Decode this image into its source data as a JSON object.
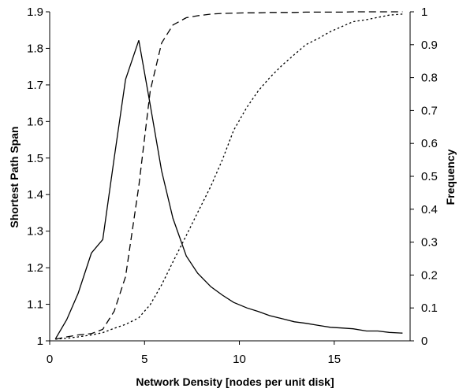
{
  "chart_data": {
    "type": "line",
    "xlabel": "Network Density [nodes per unit disk]",
    "ylabel_left": "Shortest Path Span",
    "ylabel_right": "Frequency",
    "xlim": [
      0,
      19
    ],
    "ylim_left": [
      1,
      1.9
    ],
    "ylim_right": [
      0,
      1
    ],
    "x_ticks": [
      0,
      5,
      10,
      15
    ],
    "y_ticks_left": [
      1,
      1.1,
      1.2,
      1.3,
      1.4,
      1.5,
      1.6,
      1.7,
      1.8,
      1.9
    ],
    "y_ticks_right": [
      0,
      0.1,
      0.2,
      0.3,
      0.4,
      0.5,
      0.6,
      0.7,
      0.8,
      0.9,
      1
    ],
    "y_tick_labels_right": [
      "0",
      "0.1",
      "0.2",
      "0.3",
      "0.4",
      "0.5",
      "0.6",
      "0.7",
      "0.8",
      "0.9",
      "1"
    ],
    "grid": false,
    "legend": "none",
    "series": [
      {
        "axis": "left",
        "style": "solid",
        "x": [
          0.3,
          0.9,
          1.5,
          2.2,
          2.8,
          3.4,
          4.0,
          4.7,
          5.3,
          5.9,
          6.5,
          7.2,
          7.8,
          8.5,
          9.1,
          9.7,
          10.4,
          11.0,
          11.6,
          12.3,
          12.9,
          13.5,
          14.2,
          14.8,
          15.4,
          16.0,
          16.7,
          17.3,
          17.9,
          18.6
        ],
        "y": [
          1.005,
          1.058,
          1.13,
          1.24,
          1.277,
          1.5,
          1.715,
          1.822,
          1.645,
          1.465,
          1.335,
          1.232,
          1.185,
          1.148,
          1.125,
          1.105,
          1.09,
          1.08,
          1.069,
          1.06,
          1.052,
          1.048,
          1.042,
          1.037,
          1.035,
          1.033,
          1.027,
          1.027,
          1.023,
          1.021
        ]
      },
      {
        "axis": "right",
        "style": "dashed",
        "x": [
          0.3,
          0.9,
          1.5,
          2.2,
          2.8,
          3.4,
          4.0,
          4.7,
          5.3,
          5.9,
          6.5,
          7.2,
          7.8,
          8.5,
          9.1,
          9.7,
          10.4,
          11.0,
          11.6,
          12.3,
          12.9,
          13.5,
          14.2,
          14.8,
          15.4,
          16.0,
          16.7,
          17.3,
          17.9,
          18.6
        ],
        "y": [
          0.005,
          0.012,
          0.018,
          0.022,
          0.035,
          0.09,
          0.195,
          0.47,
          0.76,
          0.905,
          0.96,
          0.982,
          0.988,
          0.993,
          0.995,
          0.996,
          0.997,
          0.997,
          0.998,
          0.998,
          0.998,
          0.999,
          0.999,
          0.999,
          0.999,
          1.0,
          1.0,
          1.0,
          1.0,
          1.0
        ]
      },
      {
        "axis": "right",
        "style": "dotted",
        "x": [
          0.3,
          0.9,
          1.5,
          2.2,
          2.8,
          3.4,
          4.0,
          4.7,
          5.3,
          5.9,
          6.5,
          7.2,
          7.8,
          8.5,
          9.1,
          9.7,
          10.4,
          11.0,
          11.6,
          12.3,
          12.9,
          13.5,
          14.2,
          14.8,
          15.4,
          16.0,
          16.7,
          17.3,
          17.9,
          18.6
        ],
        "y": [
          0.005,
          0.008,
          0.012,
          0.018,
          0.025,
          0.038,
          0.05,
          0.07,
          0.11,
          0.17,
          0.24,
          0.32,
          0.39,
          0.47,
          0.55,
          0.64,
          0.71,
          0.76,
          0.8,
          0.84,
          0.87,
          0.9,
          0.92,
          0.94,
          0.955,
          0.97,
          0.976,
          0.983,
          0.99,
          0.993
        ]
      }
    ]
  }
}
